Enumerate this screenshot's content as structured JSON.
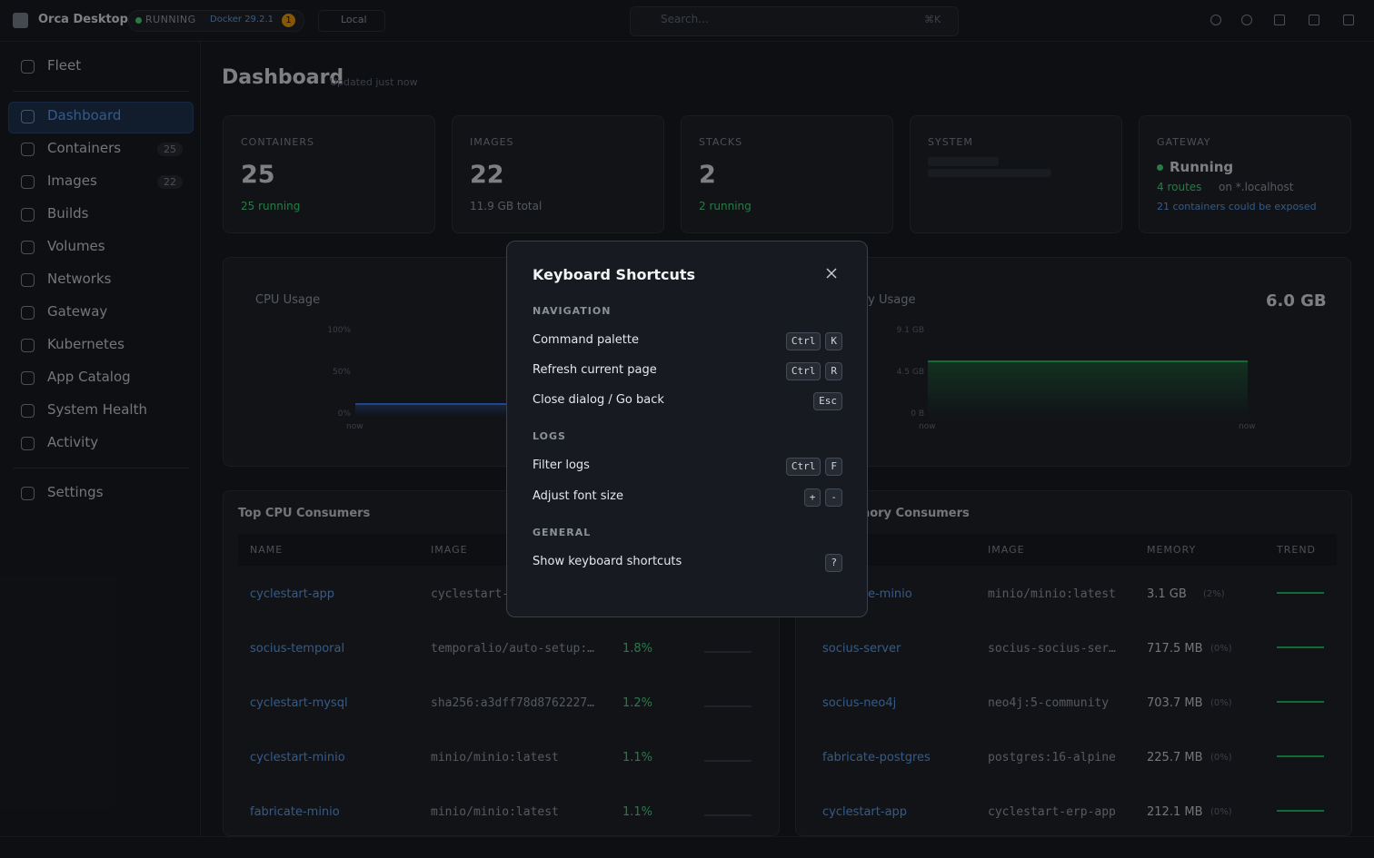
{
  "titlebar": {
    "app_name": "Orca Desktop",
    "status": "RUNNING",
    "docker": "Docker 29.2.1",
    "badge": "1",
    "context": "Local",
    "search_placeholder": "Search...",
    "search_shortcut": "⌘K"
  },
  "sidebar": {
    "top": [
      {
        "label": "Fleet"
      }
    ],
    "items": [
      {
        "label": "Dashboard"
      },
      {
        "label": "Containers",
        "count": "25"
      },
      {
        "label": "Images",
        "count": "22"
      },
      {
        "label": "Builds"
      },
      {
        "label": "Volumes"
      },
      {
        "label": "Networks"
      },
      {
        "label": "Gateway"
      },
      {
        "label": "Kubernetes"
      },
      {
        "label": "App Catalog"
      },
      {
        "label": "System Health"
      },
      {
        "label": "Activity"
      }
    ],
    "bottom": [
      {
        "label": "Settings"
      }
    ]
  },
  "header": {
    "title": "Dashboard",
    "updated": "Updated just now"
  },
  "cards": [
    {
      "label": "CONTAINERS",
      "value": "25",
      "sub": "25 running"
    },
    {
      "label": "IMAGES",
      "value": "22",
      "sub": "11.9 GB total"
    },
    {
      "label": "STACKS",
      "value": "2",
      "sub": "2 running"
    },
    {
      "label": "SYSTEM"
    }
  ],
  "gateway": {
    "label": "GATEWAY",
    "status": "Running",
    "routes": "4 routes",
    "routes_suffix": "on *.localhost",
    "exposable": "21 containers could be exposed"
  },
  "charts": [
    {
      "title": "CPU Usage",
      "yticks": [
        "100%",
        "50%",
        "0%"
      ],
      "xlabels": [
        "now"
      ]
    },
    {
      "title": "Memory Usage",
      "value": "6.0 GB",
      "yticks": [
        "9.1 GB",
        "4.5 GB",
        "0 B"
      ],
      "xlabels": [
        "now",
        "now"
      ]
    }
  ],
  "tables": [
    {
      "title": "Top CPU Consumers",
      "columns": [
        "NAME",
        "IMAGE"
      ],
      "rows": [
        [
          "cyclestart-app",
          "cyclestart-"
        ],
        [
          "socius-temporal",
          "temporalio/auto-setup:…",
          "1.8%"
        ],
        [
          "cyclestart-mysql",
          "sha256:a3dff78d8762227…",
          "1.2%"
        ],
        [
          "cyclestart-minio",
          "minio/minio:latest",
          "1.1%"
        ],
        [
          "fabricate-minio",
          "minio/minio:latest",
          "1.1%"
        ]
      ]
    },
    {
      "title": "Top Memory Consumers",
      "columns": [
        "NAME",
        "IMAGE",
        "MEMORY",
        "TREND"
      ],
      "rows": [
        [
          "fabricate-minio",
          "minio/minio:latest",
          "3.1 GB",
          "(2%)"
        ],
        [
          "socius-server",
          "socius-socius-ser…",
          "717.5 MB",
          "(0%)"
        ],
        [
          "socius-neo4j",
          "neo4j:5-community",
          "703.7 MB",
          "(0%)"
        ],
        [
          "fabricate-postgres",
          "postgres:16-alpine",
          "225.7 MB",
          "(0%)"
        ],
        [
          "cyclestart-app",
          "cyclestart-erp-app",
          "212.1 MB",
          "(0%)"
        ]
      ]
    }
  ],
  "modal": {
    "title": "Keyboard Shortcuts",
    "sections": [
      {
        "name": "NAVIGATION",
        "items": [
          {
            "label": "Command palette",
            "keys": [
              "Ctrl",
              "K"
            ]
          },
          {
            "label": "Refresh current page",
            "keys": [
              "Ctrl",
              "R"
            ]
          },
          {
            "label": "Close dialog / Go back",
            "keys": [
              "Esc"
            ]
          }
        ]
      },
      {
        "name": "LOGS",
        "items": [
          {
            "label": "Filter logs",
            "keys": [
              "Ctrl",
              "F"
            ]
          },
          {
            "label": "Adjust font size",
            "keys": [
              "+",
              "-"
            ]
          }
        ]
      },
      {
        "name": "GENERAL",
        "items": [
          {
            "label": "Show keyboard shortcuts",
            "keys": [
              "?"
            ]
          }
        ]
      }
    ]
  }
}
